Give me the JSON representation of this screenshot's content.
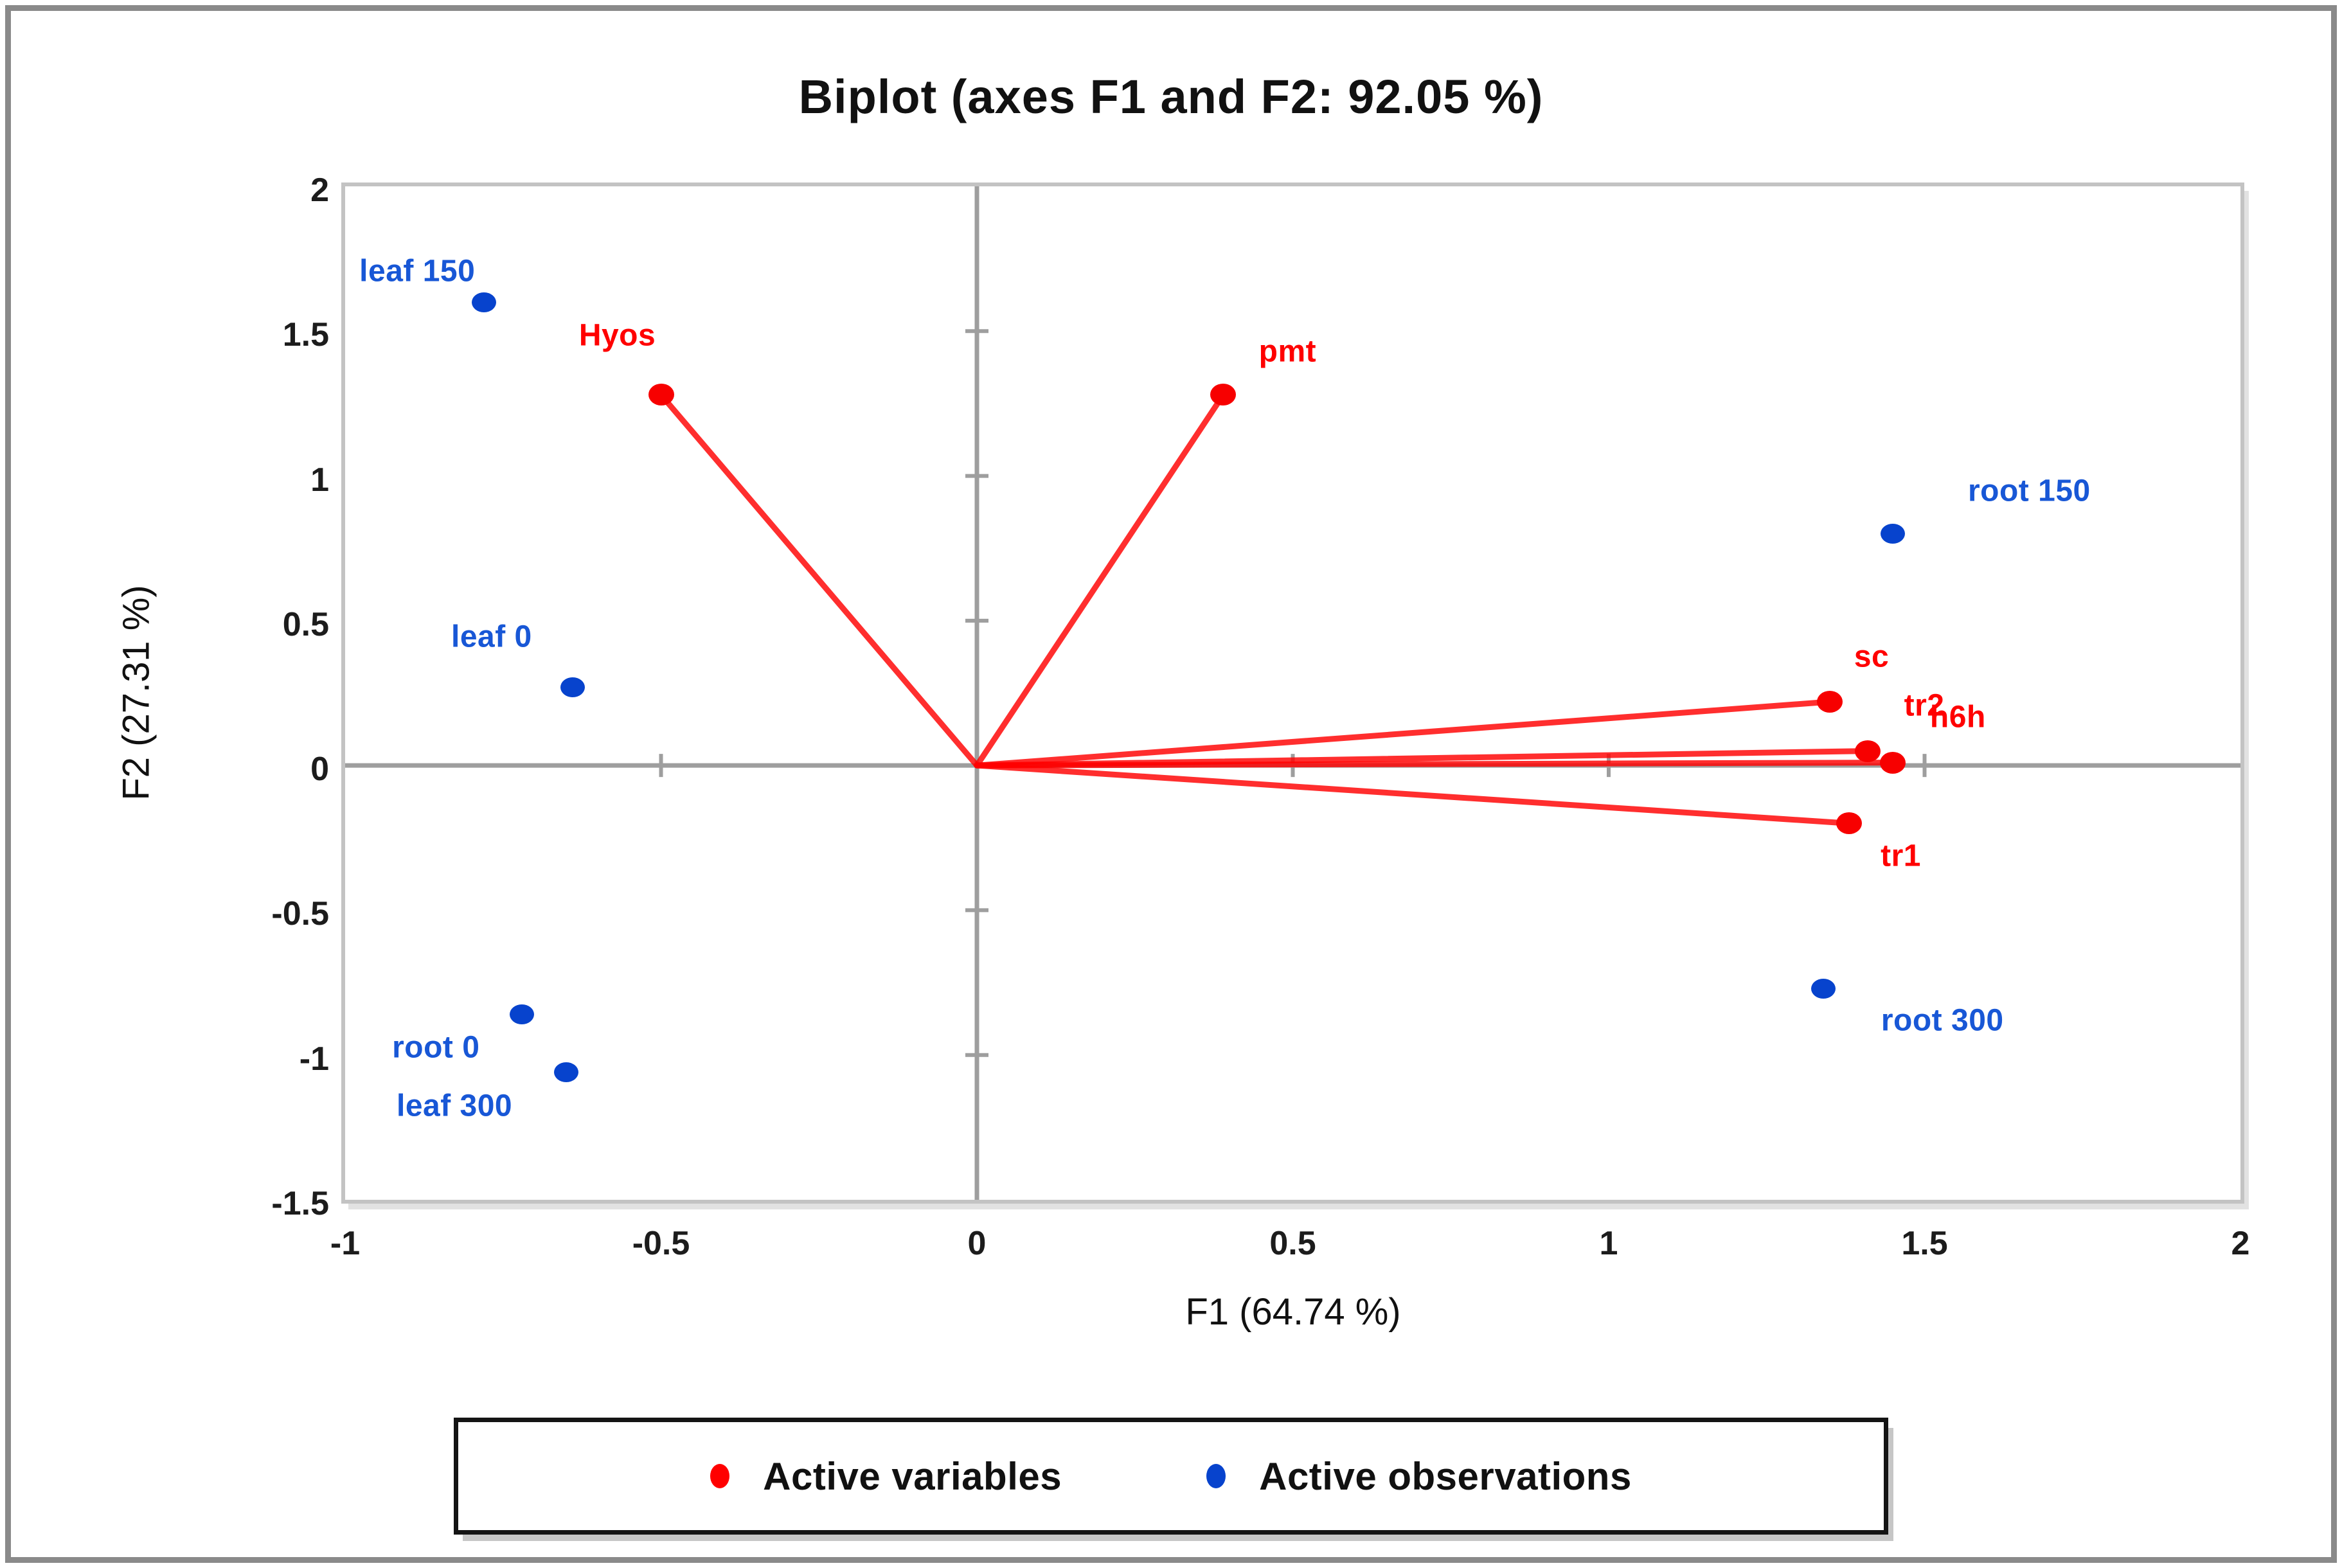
{
  "chart_data": {
    "type": "scatter",
    "subtype": "pca-biplot",
    "title": "Biplot (axes F1 and F2: 92.05 %)",
    "xlabel": "F1 (64.74 %)",
    "ylabel": "F2 (27.31 %)",
    "xlim": [
      -1,
      2
    ],
    "ylim": [
      -1.5,
      2
    ],
    "x_ticks": [
      -1,
      -0.5,
      0,
      0.5,
      1,
      1.5,
      2
    ],
    "y_ticks": [
      2,
      1.5,
      1,
      0.5,
      0,
      -0.5,
      -1,
      -1.5
    ],
    "grid": false,
    "legend_position": "bottom-center",
    "axis_color": "#9e9e9e",
    "frame_color": "#c3c3c3",
    "series": [
      {
        "name": "Active variables",
        "kind": "vector",
        "color": "#ff0000",
        "label_color": "#ff0000",
        "points": [
          {
            "label": "Hyos",
            "x": -0.5,
            "y": 1.28,
            "label_dx": -68,
            "label_dy": -92
          },
          {
            "label": "pmt",
            "x": 0.39,
            "y": 1.28,
            "label_dx": 100,
            "label_dy": -67
          },
          {
            "label": "sc",
            "x": 1.35,
            "y": 0.22,
            "label_dx": 65,
            "label_dy": -70
          },
          {
            "label": "tr2",
            "x": 1.41,
            "y": 0.05,
            "label_dx": 88,
            "label_dy": -71
          },
          {
            "label": "h6h",
            "x": 1.45,
            "y": 0.01,
            "label_dx": 101,
            "label_dy": -71
          },
          {
            "label": "tr1",
            "x": 1.38,
            "y": -0.2,
            "label_dx": 81,
            "label_dy": 51
          }
        ]
      },
      {
        "name": "Active observations",
        "kind": "point",
        "color": "#0743cd",
        "label_color": "#1857d6",
        "points": [
          {
            "label": "leaf 150",
            "x": -0.78,
            "y": 1.6,
            "label_dx": -104,
            "label_dy": -48
          },
          {
            "label": "leaf 0",
            "x": -0.64,
            "y": 0.27,
            "label_dx": -126,
            "label_dy": -78
          },
          {
            "label": "root 0",
            "x": -0.72,
            "y": -0.86,
            "label_dx": -134,
            "label_dy": 51
          },
          {
            "label": "leaf 300",
            "x": -0.65,
            "y": -1.06,
            "label_dx": -174,
            "label_dy": 52
          },
          {
            "label": "root 150",
            "x": 1.45,
            "y": 0.8,
            "label_dx": 212,
            "label_dy": -67
          },
          {
            "label": "root 300",
            "x": 1.34,
            "y": -0.77,
            "label_dx": 185,
            "label_dy": 50
          }
        ]
      }
    ]
  }
}
